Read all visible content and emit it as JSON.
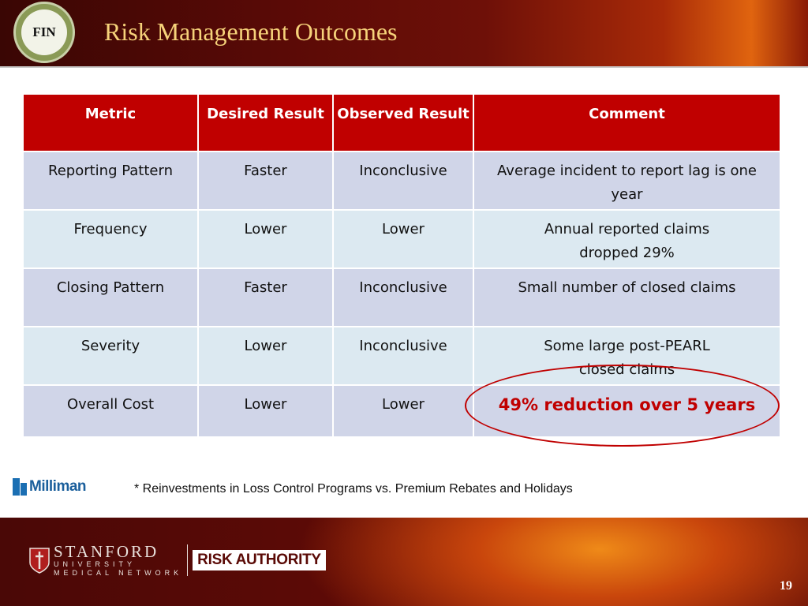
{
  "header": {
    "badge_text": "FIN",
    "title": "Risk Management Outcomes"
  },
  "table": {
    "columns": [
      "Metric",
      "Desired Result",
      "Observed Result",
      "Comment"
    ],
    "rows": [
      {
        "metric": "Reporting Pattern",
        "desired": "Faster",
        "observed": "Inconclusive",
        "comment": "Average incident to report lag is one year"
      },
      {
        "metric": "Frequency",
        "desired": "Lower",
        "observed": "Lower",
        "comment": "Annual reported claims dropped 29%"
      },
      {
        "metric": "Closing Pattern",
        "desired": "Faster",
        "observed": "Inconclusive",
        "comment": "Small number of closed claims"
      },
      {
        "metric": "Severity",
        "desired": "Lower",
        "observed": "Inconclusive",
        "comment": "Some large post-PEARL closed claims"
      },
      {
        "metric": "Overall Cost",
        "desired": "Lower",
        "observed": "Lower",
        "comment": "49% reduction over 5 years"
      }
    ]
  },
  "footnote": "* Reinvestments in Loss Control Programs vs. Premium Rebates and Holidays",
  "logos": {
    "milliman": "Milliman",
    "stanford_name": "STANFORD",
    "stanford_sub1": "UNIVERSITY",
    "stanford_sub2": "MEDICAL NETWORK",
    "risk_authority": "RISK AUTHORITY"
  },
  "page_number": "19",
  "colors": {
    "header_red": "#c00000",
    "highlight_red": "#c00000",
    "row_band_1": "#d0d5e8",
    "row_band_2": "#dce9f1",
    "title_gold": "#f6d27a"
  }
}
